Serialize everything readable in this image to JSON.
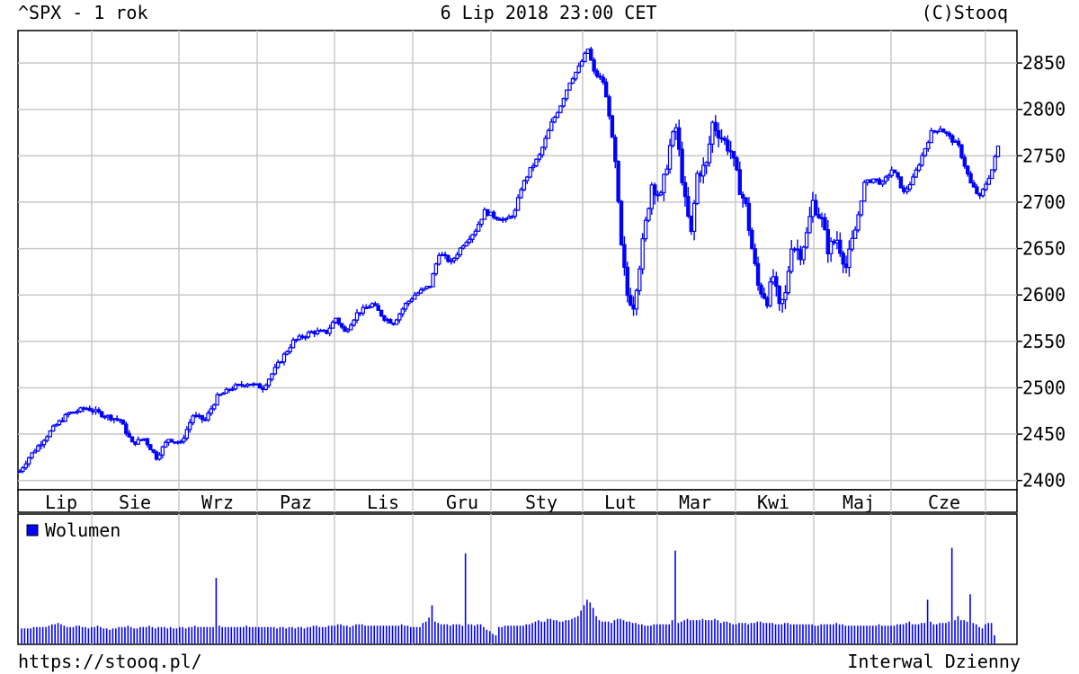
{
  "header": {
    "left": "^SPX - 1 rok",
    "center": "6 Lip 2018 23:00 CET",
    "right": "(C)Stooq"
  },
  "footer": {
    "left": "https://stooq.pl/",
    "right": "Interwal Dzienny"
  },
  "colors": {
    "series": "#0000ff",
    "legend_square": "#0000ff",
    "grid": "#c8c8c8",
    "axis": "#000000",
    "background": "#ffffff"
  },
  "chart_data": [
    {
      "type": "candlestick",
      "title": "^SPX - 1 rok",
      "ylim": [
        2390,
        2885
      ],
      "y_ticks": [
        2400,
        2450,
        2500,
        2550,
        2600,
        2650,
        2700,
        2750,
        2800,
        2850
      ],
      "y_tick_labels": [
        "2400",
        "2450",
        "2500",
        "2550",
        "2600",
        "2650",
        "2700",
        "2750",
        "2800",
        "2850"
      ],
      "x_tick_labels": [
        "Lip",
        "Sie",
        "Wrz",
        "Paz",
        "Lis",
        "Gru",
        "Sty",
        "Lut",
        "Mar",
        "Kwi",
        "Maj",
        "Cze"
      ],
      "grid": true,
      "series_points": [
        {
          "t": 0,
          "v": 2410
        },
        {
          "t": 3,
          "v": 2425
        },
        {
          "t": 8,
          "v": 2445
        },
        {
          "t": 12,
          "v": 2460
        },
        {
          "t": 16,
          "v": 2472
        },
        {
          "t": 22,
          "v": 2478
        },
        {
          "t": 28,
          "v": 2470
        },
        {
          "t": 33,
          "v": 2465
        },
        {
          "t": 37,
          "v": 2440
        },
        {
          "t": 41,
          "v": 2445
        },
        {
          "t": 45,
          "v": 2425
        },
        {
          "t": 49,
          "v": 2445
        },
        {
          "t": 53,
          "v": 2440
        },
        {
          "t": 57,
          "v": 2470
        },
        {
          "t": 61,
          "v": 2465
        },
        {
          "t": 65,
          "v": 2490
        },
        {
          "t": 70,
          "v": 2500
        },
        {
          "t": 75,
          "v": 2505
        },
        {
          "t": 80,
          "v": 2500
        },
        {
          "t": 84,
          "v": 2520
        },
        {
          "t": 90,
          "v": 2550
        },
        {
          "t": 96,
          "v": 2560
        },
        {
          "t": 101,
          "v": 2560
        },
        {
          "t": 104,
          "v": 2575
        },
        {
          "t": 107,
          "v": 2560
        },
        {
          "t": 111,
          "v": 2580
        },
        {
          "t": 116,
          "v": 2590
        },
        {
          "t": 120,
          "v": 2575
        },
        {
          "t": 123,
          "v": 2570
        },
        {
          "t": 127,
          "v": 2590
        },
        {
          "t": 130,
          "v": 2600
        },
        {
          "t": 135,
          "v": 2610
        },
        {
          "t": 138,
          "v": 2645
        },
        {
          "t": 142,
          "v": 2635
        },
        {
          "t": 146,
          "v": 2655
        },
        {
          "t": 150,
          "v": 2670
        },
        {
          "t": 153,
          "v": 2690
        },
        {
          "t": 156,
          "v": 2685
        },
        {
          "t": 160,
          "v": 2680
        },
        {
          "t": 163,
          "v": 2690
        },
        {
          "t": 165,
          "v": 2715
        },
        {
          "t": 168,
          "v": 2735
        },
        {
          "t": 171,
          "v": 2750
        },
        {
          "t": 175,
          "v": 2785
        },
        {
          "t": 178,
          "v": 2805
        },
        {
          "t": 181,
          "v": 2830
        },
        {
          "t": 184,
          "v": 2845
        },
        {
          "t": 187,
          "v": 2865
        },
        {
          "t": 189,
          "v": 2840
        },
        {
          "t": 192,
          "v": 2830
        },
        {
          "t": 194,
          "v": 2795
        },
        {
          "t": 196,
          "v": 2740
        },
        {
          "t": 198,
          "v": 2650
        },
        {
          "t": 200,
          "v": 2600
        },
        {
          "t": 202,
          "v": 2590
        },
        {
          "t": 205,
          "v": 2655
        },
        {
          "t": 208,
          "v": 2720
        },
        {
          "t": 211,
          "v": 2705
        },
        {
          "t": 214,
          "v": 2760
        },
        {
          "t": 216,
          "v": 2780
        },
        {
          "t": 219,
          "v": 2700
        },
        {
          "t": 221,
          "v": 2665
        },
        {
          "t": 223,
          "v": 2730
        },
        {
          "t": 226,
          "v": 2740
        },
        {
          "t": 228,
          "v": 2785
        },
        {
          "t": 231,
          "v": 2770
        },
        {
          "t": 234,
          "v": 2755
        },
        {
          "t": 237,
          "v": 2715
        },
        {
          "t": 239,
          "v": 2695
        },
        {
          "t": 241,
          "v": 2650
        },
        {
          "t": 243,
          "v": 2610
        },
        {
          "t": 246,
          "v": 2595
        },
        {
          "t": 248,
          "v": 2620
        },
        {
          "t": 250,
          "v": 2585
        },
        {
          "t": 252,
          "v": 2600
        },
        {
          "t": 254,
          "v": 2655
        },
        {
          "t": 257,
          "v": 2645
        },
        {
          "t": 259,
          "v": 2665
        },
        {
          "t": 261,
          "v": 2700
        },
        {
          "t": 264,
          "v": 2680
        },
        {
          "t": 266,
          "v": 2650
        },
        {
          "t": 269,
          "v": 2660
        },
        {
          "t": 272,
          "v": 2630
        },
        {
          "t": 275,
          "v": 2670
        },
        {
          "t": 278,
          "v": 2720
        },
        {
          "t": 281,
          "v": 2725
        },
        {
          "t": 284,
          "v": 2720
        },
        {
          "t": 287,
          "v": 2735
        },
        {
          "t": 289,
          "v": 2725
        },
        {
          "t": 291,
          "v": 2710
        },
        {
          "t": 294,
          "v": 2725
        },
        {
          "t": 297,
          "v": 2750
        },
        {
          "t": 300,
          "v": 2775
        },
        {
          "t": 303,
          "v": 2780
        },
        {
          "t": 306,
          "v": 2770
        },
        {
          "t": 309,
          "v": 2760
        },
        {
          "t": 311,
          "v": 2740
        },
        {
          "t": 313,
          "v": 2720
        },
        {
          "t": 316,
          "v": 2705
        },
        {
          "t": 318,
          "v": 2720
        },
        {
          "t": 320,
          "v": 2735
        },
        {
          "t": 322,
          "v": 2760
        }
      ]
    },
    {
      "type": "bar",
      "legend": "Wolumen",
      "values": [
        11,
        11,
        11,
        11,
        12,
        12,
        12,
        12,
        12,
        13,
        14,
        14,
        15,
        14,
        13,
        12,
        12,
        12,
        13,
        13,
        12,
        12,
        11,
        12,
        12,
        13,
        12,
        11,
        11,
        10,
        11,
        11,
        12,
        12,
        12,
        13,
        12,
        11,
        11,
        12,
        12,
        12,
        13,
        12,
        11,
        12,
        12,
        12,
        11,
        12,
        11,
        11,
        12,
        12,
        11,
        12,
        12,
        13,
        12,
        12,
        12,
        12,
        12,
        12,
        48,
        13,
        12,
        12,
        12,
        12,
        12,
        12,
        12,
        12,
        13,
        12,
        12,
        12,
        12,
        12,
        12,
        12,
        12,
        12,
        11,
        12,
        12,
        11,
        12,
        12,
        11,
        12,
        12,
        11,
        12,
        12,
        13,
        13,
        12,
        12,
        12,
        13,
        13,
        13,
        14,
        14,
        13,
        13,
        12,
        13,
        14,
        14,
        14,
        13,
        13,
        13,
        13,
        13,
        13,
        13,
        13,
        13,
        13,
        13,
        13,
        14,
        13,
        13,
        12,
        12,
        12,
        12,
        15,
        16,
        19,
        28,
        16,
        15,
        14,
        14,
        14,
        13,
        14,
        14,
        14,
        13,
        66,
        14,
        14,
        13,
        14,
        14,
        12,
        10,
        9,
        7,
        6,
        12,
        12,
        13,
        13,
        13,
        13,
        13,
        13,
        13,
        14,
        14,
        15,
        16,
        17,
        16,
        16,
        18,
        18,
        17,
        17,
        16,
        16,
        17,
        17,
        18,
        19,
        20,
        24,
        28,
        32,
        30,
        26,
        20,
        17,
        16,
        16,
        16,
        15,
        17,
        18,
        18,
        17,
        16,
        16,
        15,
        15,
        14,
        14,
        13,
        13,
        13,
        14,
        14,
        14,
        14,
        14,
        14,
        17,
        68,
        15,
        16,
        17,
        18,
        17,
        17,
        17,
        17,
        18,
        17,
        17,
        17,
        18,
        17,
        15,
        16,
        16,
        15,
        14,
        14,
        15,
        15,
        15,
        14,
        15,
        15,
        16,
        16,
        15,
        15,
        15,
        15,
        14,
        14,
        14,
        15,
        15,
        14,
        14,
        14,
        14,
        14,
        14,
        14,
        14,
        13,
        13,
        14,
        14,
        14,
        14,
        14,
        15,
        14,
        14,
        13,
        13,
        13,
        13,
        13,
        13,
        13,
        13,
        13,
        13,
        13,
        14,
        13,
        13,
        13,
        13,
        13,
        14,
        14,
        14,
        15,
        16,
        14,
        14,
        14,
        15,
        15,
        32,
        16,
        14,
        14,
        15,
        15,
        15,
        16,
        70,
        17,
        20,
        17,
        17,
        16,
        36,
        15,
        14,
        12,
        11,
        14,
        15,
        15,
        6
      ]
    }
  ]
}
